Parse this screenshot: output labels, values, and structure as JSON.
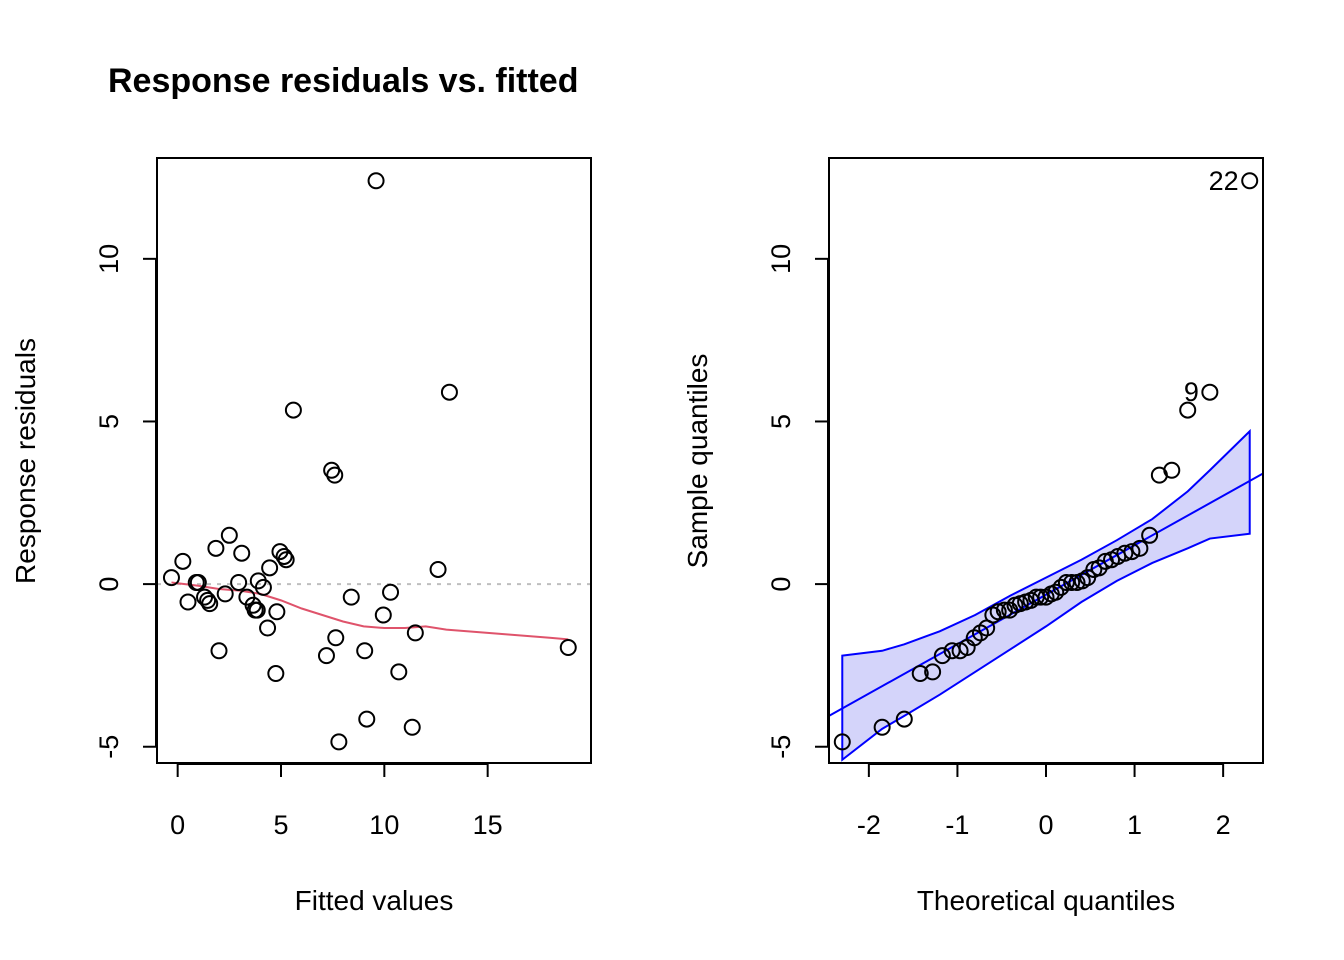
{
  "chart_data": [
    {
      "type": "scatter",
      "title": "Response residuals vs. fitted",
      "xlabel": "Fitted values",
      "ylabel": "Response residuals",
      "xlim": [
        -1,
        20
      ],
      "ylim": [
        -5.5,
        13.1
      ],
      "xticks": [
        0,
        5,
        10,
        15
      ],
      "yticks": [
        -5,
        0,
        5,
        10
      ],
      "grid": false,
      "reference_line": {
        "y": 0,
        "color": "#bebebe",
        "style": "dotted"
      },
      "points": [
        [
          -0.3,
          0.2
        ],
        [
          0.25,
          0.7
        ],
        [
          0.5,
          -0.55
        ],
        [
          0.9,
          0.05
        ],
        [
          1.0,
          0.05
        ],
        [
          1.3,
          -0.4
        ],
        [
          1.45,
          -0.5
        ],
        [
          1.55,
          -0.6
        ],
        [
          1.85,
          1.1
        ],
        [
          2.0,
          -2.05
        ],
        [
          2.3,
          -0.3
        ],
        [
          2.5,
          1.5
        ],
        [
          2.95,
          0.05
        ],
        [
          3.1,
          0.95
        ],
        [
          3.35,
          -0.4
        ],
        [
          3.65,
          -0.65
        ],
        [
          3.75,
          -0.8
        ],
        [
          3.9,
          0.1
        ],
        [
          3.85,
          -0.8
        ],
        [
          4.15,
          -0.1
        ],
        [
          4.35,
          -1.35
        ],
        [
          4.45,
          0.5
        ],
        [
          4.75,
          -2.75
        ],
        [
          4.8,
          -0.85
        ],
        [
          4.95,
          1.0
        ],
        [
          5.15,
          0.85
        ],
        [
          5.25,
          0.75
        ],
        [
          5.6,
          5.35
        ],
        [
          7.2,
          -2.2
        ],
        [
          7.45,
          3.5
        ],
        [
          7.6,
          3.35
        ],
        [
          7.65,
          -1.65
        ],
        [
          7.8,
          -4.85
        ],
        [
          8.4,
          -0.4
        ],
        [
          9.05,
          -2.05
        ],
        [
          9.15,
          -4.15
        ],
        [
          9.6,
          12.4
        ],
        [
          9.95,
          -0.95
        ],
        [
          10.3,
          -0.25
        ],
        [
          10.7,
          -2.7
        ],
        [
          11.35,
          -4.4
        ],
        [
          11.5,
          -1.5
        ],
        [
          12.6,
          0.45
        ],
        [
          13.15,
          5.9
        ],
        [
          18.9,
          -1.95
        ]
      ],
      "smooth": {
        "color": "#df536b",
        "x": [
          -0.3,
          1.0,
          2.0,
          3.0,
          4.0,
          5.0,
          6.0,
          7.0,
          8.0,
          9.0,
          10.0,
          11.0,
          12.0,
          13.0,
          14.0,
          15.0,
          16.0,
          17.0,
          18.0,
          18.9
        ],
        "y": [
          0.05,
          -0.05,
          -0.15,
          -0.2,
          -0.3,
          -0.5,
          -0.75,
          -0.95,
          -1.15,
          -1.3,
          -1.35,
          -1.35,
          -1.3,
          -1.4,
          -1.45,
          -1.5,
          -1.55,
          -1.6,
          -1.65,
          -1.7
        ]
      }
    },
    {
      "type": "scatter",
      "title": "",
      "xlabel": "Theoretical quantiles",
      "ylabel": "Sample quantiles",
      "xlim": [
        -2.45,
        2.45
      ],
      "ylim": [
        -5.5,
        13.1
      ],
      "xticks": [
        -2,
        -1,
        0,
        1,
        2
      ],
      "yticks": [
        -5,
        0,
        5,
        10
      ],
      "grid": false,
      "reference_line": {
        "color": "#0000ff",
        "x": [
          -2.45,
          2.45
        ],
        "y": [
          -4.05,
          3.4
        ]
      },
      "band": {
        "color": "#0000ff",
        "fill": "#d4d4fa",
        "x": [
          -2.3,
          -1.85,
          -1.6,
          -1.2,
          -0.8,
          -0.4,
          0,
          0.4,
          0.8,
          1.2,
          1.6,
          1.85,
          2.3
        ],
        "upper": [
          -2.2,
          -2.05,
          -1.85,
          -1.45,
          -0.95,
          -0.35,
          0.2,
          0.75,
          1.35,
          2.0,
          2.85,
          3.5,
          4.7
        ],
        "lower": [
          -5.4,
          -4.45,
          -4.05,
          -3.4,
          -2.7,
          -2.0,
          -1.3,
          -0.55,
          0.1,
          0.65,
          1.1,
          1.4,
          1.55
        ]
      },
      "points": [
        [
          -2.3,
          -4.85
        ],
        [
          -1.85,
          -4.4
        ],
        [
          -1.6,
          -4.15
        ],
        [
          -1.42,
          -2.75
        ],
        [
          -1.28,
          -2.7
        ],
        [
          -1.17,
          -2.2
        ],
        [
          -1.06,
          -2.05
        ],
        [
          -0.97,
          -2.05
        ],
        [
          -0.89,
          -1.95
        ],
        [
          -0.81,
          -1.65
        ],
        [
          -0.74,
          -1.5
        ],
        [
          -0.67,
          -1.35
        ],
        [
          -0.6,
          -0.95
        ],
        [
          -0.54,
          -0.85
        ],
        [
          -0.47,
          -0.8
        ],
        [
          -0.41,
          -0.8
        ],
        [
          -0.35,
          -0.65
        ],
        [
          -0.29,
          -0.6
        ],
        [
          -0.23,
          -0.55
        ],
        [
          -0.17,
          -0.5
        ],
        [
          -0.11,
          -0.4
        ],
        [
          -0.06,
          -0.4
        ],
        [
          0.0,
          -0.4
        ],
        [
          0.06,
          -0.3
        ],
        [
          0.11,
          -0.25
        ],
        [
          0.17,
          -0.1
        ],
        [
          0.23,
          0.05
        ],
        [
          0.29,
          0.05
        ],
        [
          0.35,
          0.05
        ],
        [
          0.41,
          0.1
        ],
        [
          0.47,
          0.2
        ],
        [
          0.54,
          0.45
        ],
        [
          0.6,
          0.5
        ],
        [
          0.67,
          0.7
        ],
        [
          0.74,
          0.75
        ],
        [
          0.81,
          0.85
        ],
        [
          0.89,
          0.95
        ],
        [
          0.97,
          1.0
        ],
        [
          1.06,
          1.1
        ],
        [
          1.17,
          1.5
        ],
        [
          1.28,
          3.35
        ],
        [
          1.42,
          3.5
        ],
        [
          1.6,
          5.35
        ],
        [
          1.85,
          5.9
        ],
        [
          2.3,
          12.4
        ]
      ],
      "point_labels": [
        {
          "text": "22",
          "x": 2.3,
          "y": 12.4
        },
        {
          "text": "9",
          "x": 1.85,
          "y": 5.9
        }
      ]
    }
  ]
}
